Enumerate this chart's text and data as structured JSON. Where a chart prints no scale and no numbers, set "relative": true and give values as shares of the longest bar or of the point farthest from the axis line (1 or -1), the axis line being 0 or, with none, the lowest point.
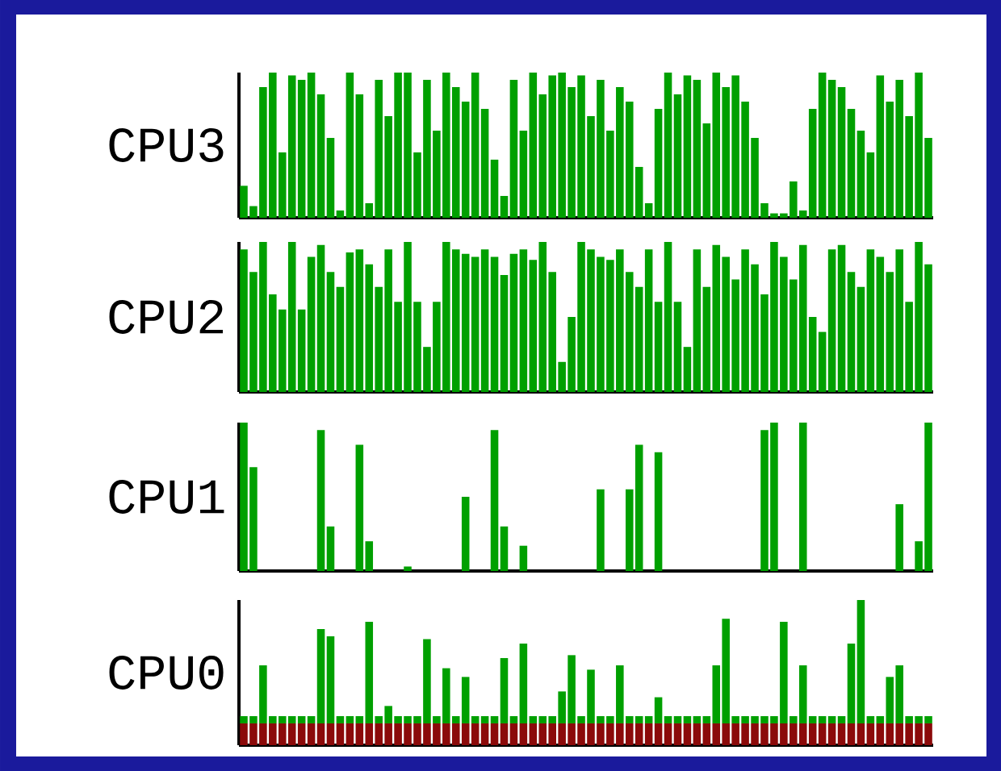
{
  "chart_data": [
    {
      "type": "bar",
      "ylabel": "CPU3",
      "relative": true,
      "color": "#00a000",
      "categories": [
        null,
        null,
        null,
        null,
        null,
        null,
        null,
        null,
        null,
        null,
        null,
        null,
        null,
        null,
        null,
        null,
        null,
        null,
        null,
        null,
        null,
        null,
        null,
        null,
        null,
        null,
        null,
        null,
        null,
        null,
        null,
        null,
        null,
        null,
        null,
        null,
        null,
        null,
        null,
        null,
        null,
        null,
        null,
        null,
        null,
        null,
        null,
        null,
        null,
        null,
        null,
        null,
        null,
        null,
        null,
        null,
        null,
        null,
        null,
        null,
        null,
        null,
        null,
        null,
        null,
        null,
        null,
        null,
        null,
        null,
        null,
        null
      ],
      "values": [
        0.22,
        0.08,
        0.9,
        1.0,
        0.45,
        0.98,
        0.95,
        1.0,
        0.85,
        0.55,
        0.05,
        1.0,
        0.85,
        0.1,
        0.95,
        0.7,
        1.0,
        1.0,
        0.45,
        0.95,
        0.6,
        1.0,
        0.9,
        0.8,
        1.0,
        0.75,
        0.4,
        0.15,
        0.95,
        0.6,
        1.0,
        0.85,
        0.98,
        1.0,
        0.9,
        0.98,
        0.7,
        0.95,
        0.6,
        0.9,
        0.8,
        0.35,
        0.1,
        0.75,
        1.0,
        0.85,
        0.98,
        0.95,
        0.65,
        1.0,
        0.9,
        0.98,
        0.8,
        0.55,
        0.1,
        0.03,
        0.03,
        0.25,
        0.05,
        0.75,
        1.0,
        0.95,
        0.9,
        0.75,
        0.6,
        0.45,
        0.98,
        0.8,
        0.95,
        0.7,
        1.0,
        0.55
      ]
    },
    {
      "type": "bar",
      "ylabel": "CPU2",
      "relative": true,
      "color": "#00a000",
      "categories": [
        null,
        null,
        null,
        null,
        null,
        null,
        null,
        null,
        null,
        null,
        null,
        null,
        null,
        null,
        null,
        null,
        null,
        null,
        null,
        null,
        null,
        null,
        null,
        null,
        null,
        null,
        null,
        null,
        null,
        null,
        null,
        null,
        null,
        null,
        null,
        null,
        null,
        null,
        null,
        null,
        null,
        null,
        null,
        null,
        null,
        null,
        null,
        null,
        null,
        null,
        null,
        null,
        null,
        null,
        null,
        null,
        null,
        null,
        null,
        null,
        null,
        null,
        null,
        null,
        null,
        null,
        null,
        null,
        null,
        null,
        null,
        null
      ],
      "values": [
        0.95,
        0.8,
        1.0,
        0.65,
        0.55,
        1.0,
        0.55,
        0.9,
        0.98,
        0.8,
        0.7,
        0.93,
        0.95,
        0.85,
        0.7,
        0.95,
        0.6,
        1.0,
        0.6,
        0.3,
        0.6,
        1.0,
        0.95,
        0.92,
        0.9,
        0.95,
        0.9,
        0.78,
        0.92,
        0.95,
        0.88,
        1.0,
        0.8,
        0.2,
        0.5,
        1.0,
        0.95,
        0.9,
        0.88,
        0.95,
        0.8,
        0.7,
        0.95,
        0.6,
        1.0,
        0.6,
        0.3,
        0.95,
        0.7,
        0.98,
        0.9,
        0.75,
        0.95,
        0.85,
        0.65,
        1.0,
        0.9,
        0.75,
        0.98,
        0.5,
        0.4,
        0.95,
        0.98,
        0.8,
        0.7,
        0.95,
        0.9,
        0.8,
        0.95,
        0.6,
        1.0,
        0.85
      ]
    },
    {
      "type": "bar",
      "ylabel": "CPU1",
      "relative": true,
      "color": "#00a000",
      "categories": [
        null,
        null,
        null,
        null,
        null,
        null,
        null,
        null,
        null,
        null,
        null,
        null,
        null,
        null,
        null,
        null,
        null,
        null,
        null,
        null,
        null,
        null,
        null,
        null,
        null,
        null,
        null,
        null,
        null,
        null,
        null,
        null,
        null,
        null,
        null,
        null,
        null,
        null,
        null,
        null,
        null,
        null,
        null,
        null,
        null,
        null,
        null,
        null,
        null,
        null,
        null,
        null,
        null,
        null,
        null,
        null,
        null,
        null,
        null,
        null,
        null,
        null,
        null,
        null,
        null,
        null,
        null,
        null,
        null,
        null,
        null,
        null
      ],
      "values": [
        1.0,
        0.7,
        0,
        0,
        0,
        0,
        0,
        0,
        0.95,
        0.3,
        0,
        0,
        0.85,
        0.2,
        0,
        0,
        0,
        0.03,
        0,
        0,
        0,
        0,
        0,
        0.5,
        0,
        0,
        0.95,
        0.3,
        0,
        0.17,
        0,
        0,
        0,
        0,
        0,
        0,
        0,
        0.55,
        0,
        0,
        0.55,
        0.85,
        0,
        0.8,
        0,
        0,
        0,
        0,
        0,
        0,
        0,
        0,
        0,
        0,
        0.95,
        1.0,
        0,
        0,
        1.0,
        0,
        0,
        0,
        0,
        0,
        0,
        0,
        0,
        0,
        0.45,
        0,
        0.2,
        1.0
      ]
    },
    {
      "type": "bar",
      "ylabel": "CPU0",
      "relative": true,
      "stacked": true,
      "categories": [
        null,
        null,
        null,
        null,
        null,
        null,
        null,
        null,
        null,
        null,
        null,
        null,
        null,
        null,
        null,
        null,
        null,
        null,
        null,
        null,
        null,
        null,
        null,
        null,
        null,
        null,
        null,
        null,
        null,
        null,
        null,
        null,
        null,
        null,
        null,
        null,
        null,
        null,
        null,
        null,
        null,
        null,
        null,
        null,
        null,
        null,
        null,
        null,
        null,
        null,
        null,
        null,
        null,
        null,
        null,
        null,
        null,
        null,
        null,
        null,
        null,
        null,
        null,
        null,
        null,
        null,
        null,
        null,
        null,
        null,
        null,
        null
      ],
      "series": [
        {
          "color": "#8b0a0a",
          "values": [
            0.15,
            0.15,
            0.15,
            0.15,
            0.15,
            0.15,
            0.15,
            0.15,
            0.15,
            0.15,
            0.15,
            0.15,
            0.15,
            0.15,
            0.15,
            0.15,
            0.15,
            0.15,
            0.15,
            0.15,
            0.15,
            0.15,
            0.15,
            0.15,
            0.15,
            0.15,
            0.15,
            0.15,
            0.15,
            0.15,
            0.15,
            0.15,
            0.15,
            0.15,
            0.15,
            0.15,
            0.15,
            0.15,
            0.15,
            0.15,
            0.15,
            0.15,
            0.15,
            0.15,
            0.15,
            0.15,
            0.15,
            0.15,
            0.15,
            0.15,
            0.15,
            0.15,
            0.15,
            0.15,
            0.15,
            0.15,
            0.15,
            0.15,
            0.15,
            0.15,
            0.15,
            0.15,
            0.15,
            0.15,
            0.15,
            0.15,
            0.15,
            0.15,
            0.15,
            0.15,
            0.15,
            0.15
          ]
        },
        {
          "color": "#00a000",
          "values": [
            0.05,
            0.05,
            0.4,
            0.05,
            0.05,
            0.05,
            0.05,
            0.05,
            0.65,
            0.6,
            0.05,
            0.05,
            0.05,
            0.7,
            0.05,
            0.12,
            0.05,
            0.05,
            0.05,
            0.58,
            0.05,
            0.38,
            0.05,
            0.32,
            0.05,
            0.05,
            0.05,
            0.45,
            0.05,
            0.55,
            0.05,
            0.05,
            0.05,
            0.22,
            0.47,
            0.05,
            0.37,
            0.05,
            0.05,
            0.4,
            0.05,
            0.05,
            0.05,
            0.18,
            0.05,
            0.05,
            0.05,
            0.05,
            0.05,
            0.4,
            0.72,
            0.05,
            0.05,
            0.05,
            0.05,
            0.05,
            0.7,
            0.05,
            0.4,
            0.05,
            0.05,
            0.05,
            0.05,
            0.55,
            0.85,
            0.05,
            0.05,
            0.32,
            0.4,
            0.05,
            0.05,
            0.05
          ]
        }
      ]
    }
  ]
}
